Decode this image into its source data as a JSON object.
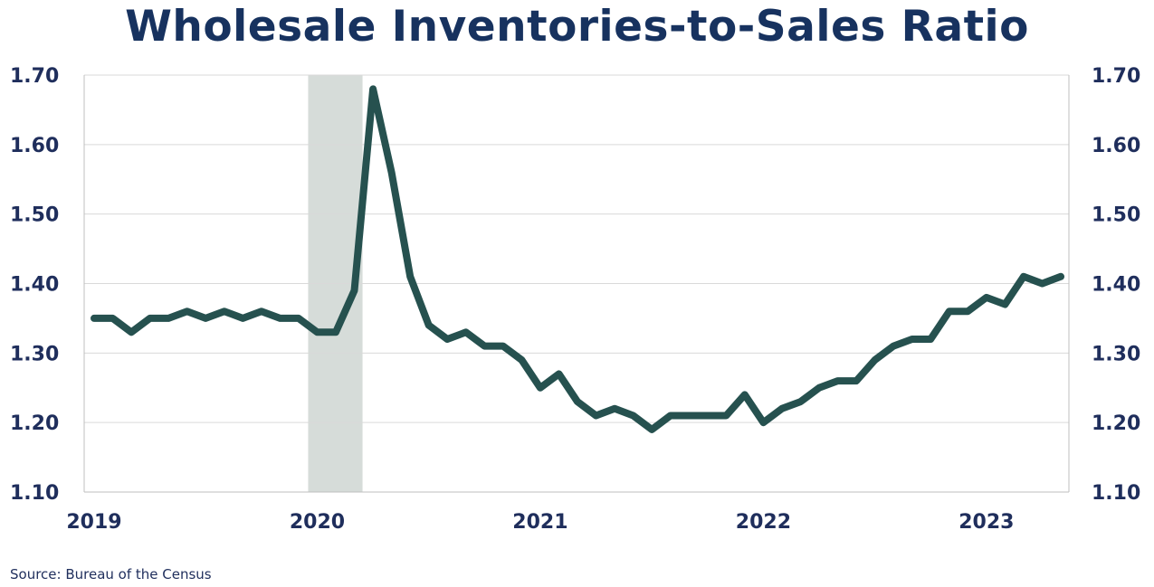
{
  "source": "Source:  Bureau of the Census",
  "colors": {
    "line": "#26514f",
    "shade": "#d6dcd9",
    "text": "#1f2e5c",
    "title": "#17325f",
    "grid": "#d9d9d9"
  },
  "chart_data": {
    "type": "line",
    "title": "Wholesale Inventories-to-Sales Ratio",
    "xlabel": "",
    "ylabel": "",
    "ylim": [
      1.1,
      1.7
    ],
    "y_ticks": [
      "1.70",
      "1.60",
      "1.50",
      "1.40",
      "1.30",
      "1.20",
      "1.10"
    ],
    "x_ticks": [
      "2019",
      "2020",
      "2021",
      "2022",
      "2023"
    ],
    "secondary_y_axis": true,
    "grid": "horizontal",
    "recession_shading": {
      "start": "2020-01",
      "end": "2020-03"
    },
    "series": [
      {
        "x": [
          "2019-01",
          "2019-02",
          "2019-03",
          "2019-04",
          "2019-05",
          "2019-06",
          "2019-07",
          "2019-08",
          "2019-09",
          "2019-10",
          "2019-11",
          "2019-12",
          "2020-01",
          "2020-02",
          "2020-03",
          "2020-04",
          "2020-05",
          "2020-06",
          "2020-07",
          "2020-08",
          "2020-09",
          "2020-10",
          "2020-11",
          "2020-12",
          "2021-01",
          "2021-02",
          "2021-03",
          "2021-04",
          "2021-05",
          "2021-06",
          "2021-07",
          "2021-08",
          "2021-09",
          "2021-10",
          "2021-11",
          "2021-12",
          "2022-01",
          "2022-02",
          "2022-03",
          "2022-04",
          "2022-05",
          "2022-06",
          "2022-07",
          "2022-08",
          "2022-09",
          "2022-10",
          "2022-11",
          "2022-12",
          "2023-01",
          "2023-02",
          "2023-03",
          "2023-04",
          "2023-05"
        ],
        "values": [
          1.35,
          1.35,
          1.33,
          1.35,
          1.35,
          1.36,
          1.35,
          1.36,
          1.35,
          1.36,
          1.35,
          1.35,
          1.33,
          1.33,
          1.39,
          1.68,
          1.56,
          1.41,
          1.34,
          1.32,
          1.33,
          1.31,
          1.31,
          1.29,
          1.25,
          1.27,
          1.23,
          1.21,
          1.22,
          1.21,
          1.19,
          1.21,
          1.21,
          1.21,
          1.21,
          1.24,
          1.2,
          1.22,
          1.23,
          1.25,
          1.26,
          1.26,
          1.29,
          1.31,
          1.32,
          1.32,
          1.36,
          1.36,
          1.38,
          1.37,
          1.41,
          1.4,
          1.41
        ]
      }
    ]
  }
}
